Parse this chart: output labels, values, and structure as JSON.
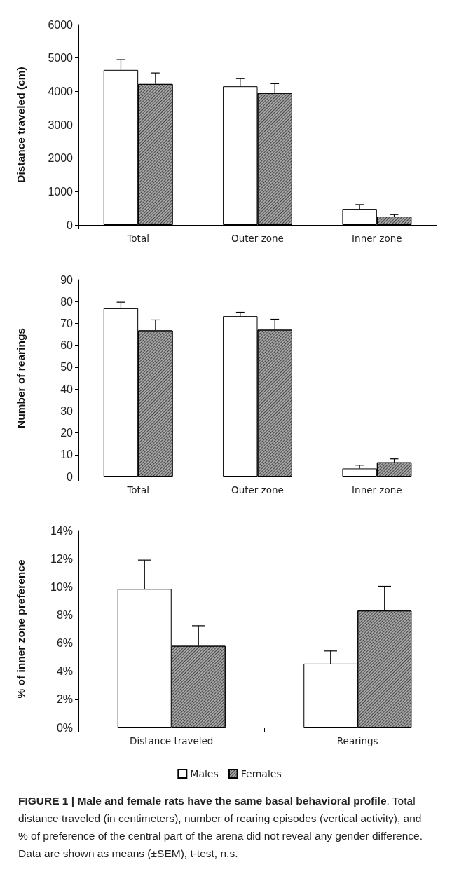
{
  "chart_data": [
    {
      "type": "bar",
      "ylabel": "Distance traveled (cm)",
      "categories": [
        "Total",
        "Outer zone",
        "Inner zone"
      ],
      "series": [
        {
          "color": "#ffffff",
          "values": [
            4640,
            4150,
            480
          ],
          "errors": [
            [
              4640,
              4950
            ],
            [
              4150,
              4380
            ],
            [
              480,
              610
            ]
          ]
        },
        {
          "color": "#a6a6a6",
          "values": [
            4220,
            3950,
            250
          ],
          "errors": [
            [
              4220,
              4550
            ],
            [
              3950,
              4230
            ],
            [
              250,
              310
            ]
          ]
        }
      ],
      "ylim": [
        0,
        6000
      ],
      "yticks": [
        0,
        1000,
        2000,
        3000,
        4000,
        5000,
        6000
      ],
      "grid": false,
      "legend": false
    },
    {
      "type": "bar",
      "ylabel": "Number of rearings",
      "categories": [
        "Total",
        "Outer zone",
        "Inner zone"
      ],
      "series": [
        {
          "color": "#ffffff",
          "values": [
            76.9,
            73.3,
            3.7
          ],
          "errors": [
            [
              76.9,
              79.7
            ],
            [
              73.3,
              75.1
            ],
            [
              3.7,
              5.2
            ]
          ]
        },
        {
          "color": "#a6a6a6",
          "values": [
            66.8,
            67.1,
            6.5
          ],
          "errors": [
            [
              66.8,
              71.6
            ],
            [
              67.1,
              71.9
            ],
            [
              6.5,
              8.1
            ]
          ]
        }
      ],
      "ylim": [
        0,
        90
      ],
      "yticks": [
        0,
        10,
        20,
        30,
        40,
        50,
        60,
        70,
        80,
        90
      ],
      "grid": false,
      "legend": false
    },
    {
      "type": "bar",
      "ylabel": "% of inner zone preference",
      "categories": [
        "Distance traveled",
        "Rearings"
      ],
      "series": [
        {
          "name": "Males",
          "color": "#ffffff",
          "values": [
            9.85,
            4.54
          ],
          "errors": [
            [
              9.85,
              11.9
            ],
            [
              4.54,
              5.44
            ]
          ]
        },
        {
          "name": "Females",
          "color": "#a6a6a6",
          "values": [
            5.8,
            8.31
          ],
          "errors": [
            [
              5.8,
              7.23
            ],
            [
              8.31,
              10.04
            ]
          ]
        }
      ],
      "ylim": [
        0,
        14
      ],
      "yticks": [
        {
          "value": 0,
          "label": "0%"
        },
        {
          "value": 2,
          "label": "2%"
        },
        {
          "value": 4,
          "label": "4%"
        },
        {
          "value": 6,
          "label": "6%"
        },
        {
          "value": 8,
          "label": "8%"
        },
        {
          "value": 10,
          "label": "10%"
        },
        {
          "value": 12,
          "label": "12%"
        },
        {
          "value": 14,
          "label": "14%"
        }
      ],
      "grid": false,
      "legend": "bottom",
      "annotations": [
        "FIGURE 1 | Male and female rats have the same basal behavioral profile",
        ". Total distance traveled (in centimeters), number of rearing episodes (vertical activity), and % of preference of the central part of the arena did not reveal any gender difference. Data are shown as means (±SEM), t-test, n.s."
      ]
    }
  ]
}
